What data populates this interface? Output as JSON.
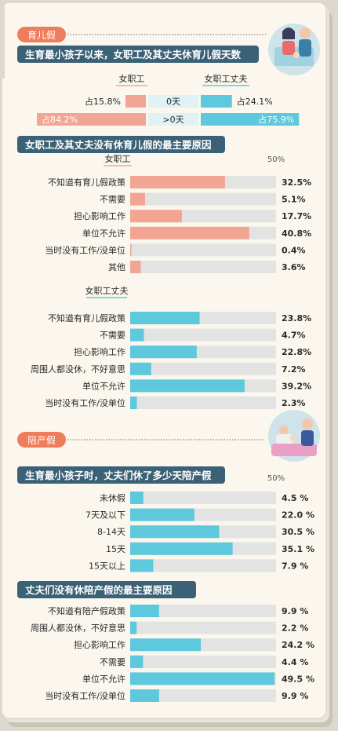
{
  "colors": {
    "paper": "#fbf7ee",
    "coral": "#f3a594",
    "teal": "#5ec8dc",
    "track": "#e3e3e3",
    "header_bg": "#3b6176",
    "tag_bg": "#ee7d5b"
  },
  "section1_tag": "育儿假",
  "section2_tag": "陪产假",
  "charts": {
    "days": {
      "title": "生育最小孩子以来，女职工及其丈夫休育儿假天数",
      "legend_left": "女职工",
      "legend_right": "女职工丈夫",
      "rows": [
        {
          "category": "0天",
          "left_label": "占15.8%",
          "right_label": "占24.1%"
        },
        {
          "category": ">0天",
          "left_label": "占84.2%",
          "right_label": "占75.9%"
        }
      ]
    },
    "women": {
      "title": "女职工及其丈夫没有休育儿假的最主要原因",
      "subtitle": "女职工",
      "ref_label": "50%"
    },
    "husbands": {
      "subtitle": "女职工丈夫"
    },
    "paternity": {
      "title": "生育最小孩子时，丈夫们休了多少天陪产假",
      "ref_label": "50%"
    },
    "paternity_reasons": {
      "title": "丈夫们没有休陪产假的最主要原因"
    }
  },
  "chart_data": [
    {
      "type": "bar",
      "title": "生育最小孩子以来，女职工及其丈夫休育儿假天数",
      "categories": [
        "0天",
        ">0天"
      ],
      "series": [
        {
          "name": "女职工",
          "values": [
            15.8,
            84.2
          ]
        },
        {
          "name": "女职工丈夫",
          "values": [
            24.1,
            75.9
          ]
        }
      ],
      "ylim": [
        0,
        100
      ]
    },
    {
      "type": "bar",
      "title": "女职工及其丈夫没有休育儿假的最主要原因",
      "series_name": "女职工",
      "color": "#f3a594",
      "ylim": [
        0,
        50
      ],
      "items": [
        {
          "label": "不知道有育儿假政策",
          "value": 32.5,
          "text": "32.5%"
        },
        {
          "label": "不需要",
          "value": 5.1,
          "text": "5.1%"
        },
        {
          "label": "担心影响工作",
          "value": 17.7,
          "text": "17.7%"
        },
        {
          "label": "单位不允许",
          "value": 40.8,
          "text": "40.8%"
        },
        {
          "label": "当时没有工作/没单位",
          "value": 0.4,
          "text": "0.4%"
        },
        {
          "label": "其他",
          "value": 3.6,
          "text": "3.6%"
        }
      ]
    },
    {
      "type": "bar",
      "series_name": "女职工丈夫",
      "color": "#5ec8dc",
      "ylim": [
        0,
        50
      ],
      "items": [
        {
          "label": "不知道有育儿假政策",
          "value": 23.8,
          "text": "23.8%"
        },
        {
          "label": "不需要",
          "value": 4.7,
          "text": "4.7%"
        },
        {
          "label": "担心影响工作",
          "value": 22.8,
          "text": "22.8%"
        },
        {
          "label": "周围人都没休，不好意思",
          "value": 7.2,
          "text": "7.2%"
        },
        {
          "label": "单位不允许",
          "value": 39.2,
          "text": "39.2%"
        },
        {
          "label": "当时没有工作/没单位",
          "value": 2.3,
          "text": "2.3%"
        }
      ]
    },
    {
      "type": "bar",
      "title": "生育最小孩子时，丈夫们休了多少天陪产假",
      "color": "#5ec8dc",
      "ylim": [
        0,
        50
      ],
      "items": [
        {
          "label": "未休假",
          "value": 4.5,
          "text": "4.5 %"
        },
        {
          "label": "7天及以下",
          "value": 22.0,
          "text": "22.0 %"
        },
        {
          "label": "8-14天",
          "value": 30.5,
          "text": "30.5 %"
        },
        {
          "label": "15天",
          "value": 35.1,
          "text": "35.1 %"
        },
        {
          "label": "15天以上",
          "value": 7.9,
          "text": "7.9 %"
        }
      ]
    },
    {
      "type": "bar",
      "title": "丈夫们没有休陪产假的最主要原因",
      "color": "#5ec8dc",
      "ylim": [
        0,
        50
      ],
      "items": [
        {
          "label": "不知道有陪产假政策",
          "value": 9.9,
          "text": "9.9 %"
        },
        {
          "label": "周围人都没休，不好意思",
          "value": 2.2,
          "text": "2.2 %"
        },
        {
          "label": "担心影响工作",
          "value": 24.2,
          "text": "24.2 %"
        },
        {
          "label": "不需要",
          "value": 4.4,
          "text": "4.4 %"
        },
        {
          "label": "单位不允许",
          "value": 49.5,
          "text": "49.5 %"
        },
        {
          "label": "当时没有工作/没单位",
          "value": 9.9,
          "text": "9.9 %"
        }
      ]
    }
  ]
}
